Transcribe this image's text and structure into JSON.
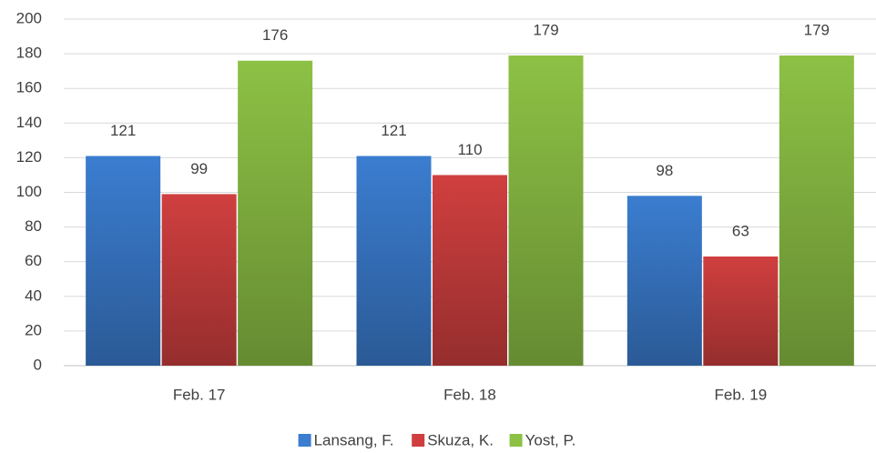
{
  "chart_data": {
    "type": "bar",
    "categories": [
      "Feb. 17",
      "Feb. 18",
      "Feb. 19"
    ],
    "series": [
      {
        "name": "Lansang, F.",
        "color": "#3b7dd0",
        "values": [
          121,
          121,
          98
        ]
      },
      {
        "name": "Skuza, K.",
        "color": "#d03f3f",
        "values": [
          99,
          110,
          63
        ]
      },
      {
        "name": "Yost, P.",
        "color": "#8dc145",
        "values": [
          176,
          179,
          179
        ]
      }
    ],
    "ylim": [
      0,
      200
    ],
    "yticks": [
      0,
      20,
      40,
      60,
      80,
      100,
      120,
      140,
      160,
      180,
      200
    ],
    "grid": true,
    "legend": "bottom"
  }
}
